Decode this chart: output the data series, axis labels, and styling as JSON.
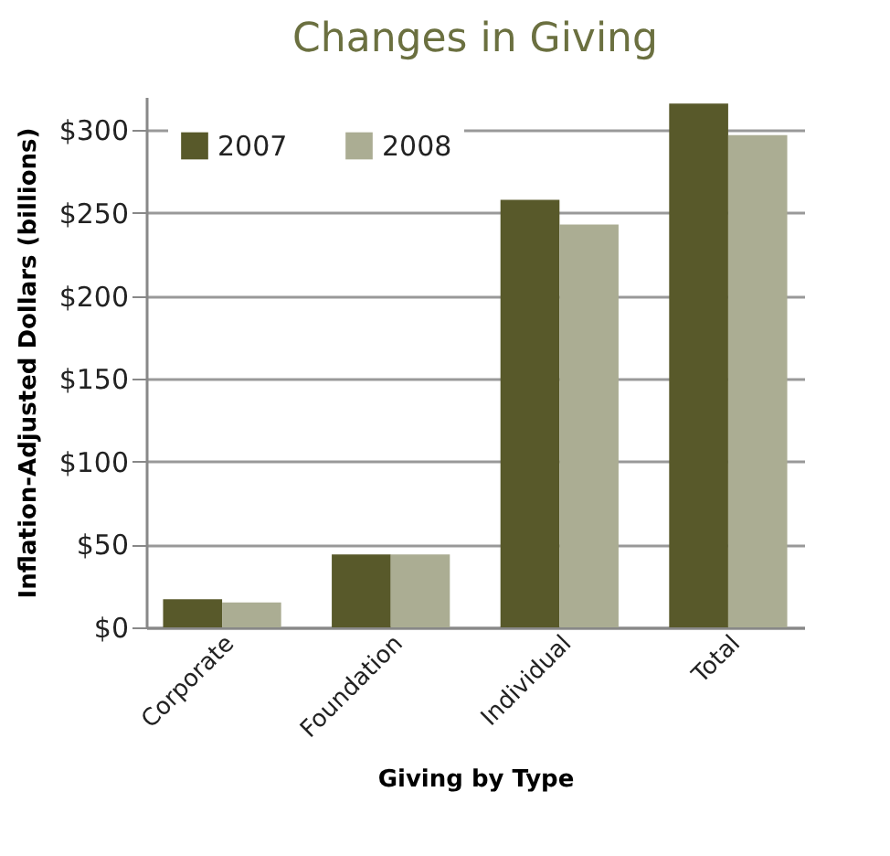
{
  "chart_data": {
    "type": "bar",
    "title": "Changes in Giving",
    "xlabel": "Giving by Type",
    "ylabel": "Inflation-Adjusted Dollars (billions)",
    "categories": [
      "Corporate",
      "Foundation",
      "Individual",
      "Total"
    ],
    "series": [
      {
        "name": "2007",
        "color": "#58592a",
        "values": [
          17,
          44,
          258,
          316
        ]
      },
      {
        "name": "2008",
        "color": "#abad93",
        "values": [
          15,
          44,
          243,
          297
        ]
      }
    ],
    "ylim": [
      0,
      320
    ],
    "yticks": [
      {
        "value": 0,
        "label": "$0"
      },
      {
        "value": 50,
        "label": "$50"
      },
      {
        "value": 100,
        "label": "$100"
      },
      {
        "value": 150,
        "label": "$150"
      },
      {
        "value": 200,
        "label": "$200"
      },
      {
        "value": 250,
        "label": "$250"
      },
      {
        "value": 300,
        "label": "$300"
      }
    ],
    "grid": "y",
    "legend": "top left"
  }
}
